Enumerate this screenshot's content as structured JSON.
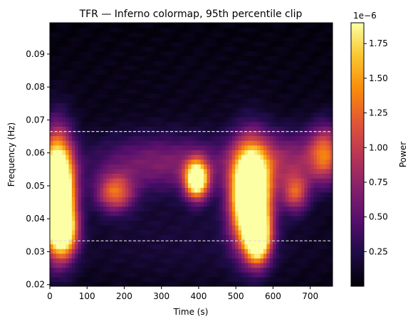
{
  "chart_data": {
    "type": "heatmap",
    "title": "TFR — Inferno colormap, 95th percentile clip",
    "xlabel": "Time (s)",
    "ylabel": "Frequency (Hz)",
    "xlim": [
      0,
      760
    ],
    "ylim": [
      0.0195,
      0.0995
    ],
    "xticks": [
      0,
      100,
      200,
      300,
      400,
      500,
      600,
      700
    ],
    "xtick_labels": [
      "0",
      "100",
      "200",
      "300",
      "400",
      "500",
      "600",
      "700"
    ],
    "yticks": [
      0.02,
      0.03,
      0.04,
      0.05,
      0.06,
      0.07,
      0.08,
      0.09
    ],
    "ytick_labels": [
      "0.02",
      "0.03",
      "0.04",
      "0.05",
      "0.06",
      "0.07",
      "0.08",
      "0.09"
    ],
    "colormap": "inferno",
    "colorbar": {
      "label": "Power",
      "offset_text": "1e−6",
      "range": [
        0.0,
        1.9
      ],
      "ticks": [
        0.25,
        0.5,
        0.75,
        1.0,
        1.25,
        1.5,
        1.75
      ],
      "tick_labels": [
        "0.25",
        "0.50",
        "0.75",
        "1.00",
        "1.25",
        "1.50",
        "1.75"
      ]
    },
    "reference_lines": [
      {
        "orientation": "horizontal",
        "y": 0.0665,
        "style": "dashed",
        "color": "#dddddd"
      },
      {
        "orientation": "horizontal",
        "y": 0.0333,
        "style": "dashed",
        "color": "#dddddd"
      }
    ],
    "power_sources": [
      {
        "t": 20,
        "f": 0.048,
        "st": 30,
        "sf": 0.011,
        "a": 3.2
      },
      {
        "t": 40,
        "f": 0.036,
        "st": 25,
        "sf": 0.005,
        "a": 1.2
      },
      {
        "t": 540,
        "f": 0.047,
        "st": 35,
        "sf": 0.01,
        "a": 3.0
      },
      {
        "t": 560,
        "f": 0.034,
        "st": 22,
        "sf": 0.005,
        "a": 1.8
      },
      {
        "t": 395,
        "f": 0.052,
        "st": 22,
        "sf": 0.004,
        "a": 2.0
      },
      {
        "t": 175,
        "f": 0.048,
        "st": 35,
        "sf": 0.004,
        "a": 1.0
      },
      {
        "t": 660,
        "f": 0.048,
        "st": 25,
        "sf": 0.004,
        "a": 0.9
      },
      {
        "t": 740,
        "f": 0.06,
        "st": 30,
        "sf": 0.006,
        "a": 0.9
      },
      {
        "t": 300,
        "f": 0.057,
        "st": 140,
        "sf": 0.006,
        "a": 0.55
      },
      {
        "t": 640,
        "f": 0.058,
        "st": 90,
        "sf": 0.006,
        "a": 0.6
      },
      {
        "t": 380,
        "f": 0.033,
        "st": 300,
        "sf": 0.01,
        "a": 0.15
      },
      {
        "t": 380,
        "f": 0.075,
        "st": 400,
        "sf": 0.015,
        "a": 0.05
      }
    ]
  }
}
